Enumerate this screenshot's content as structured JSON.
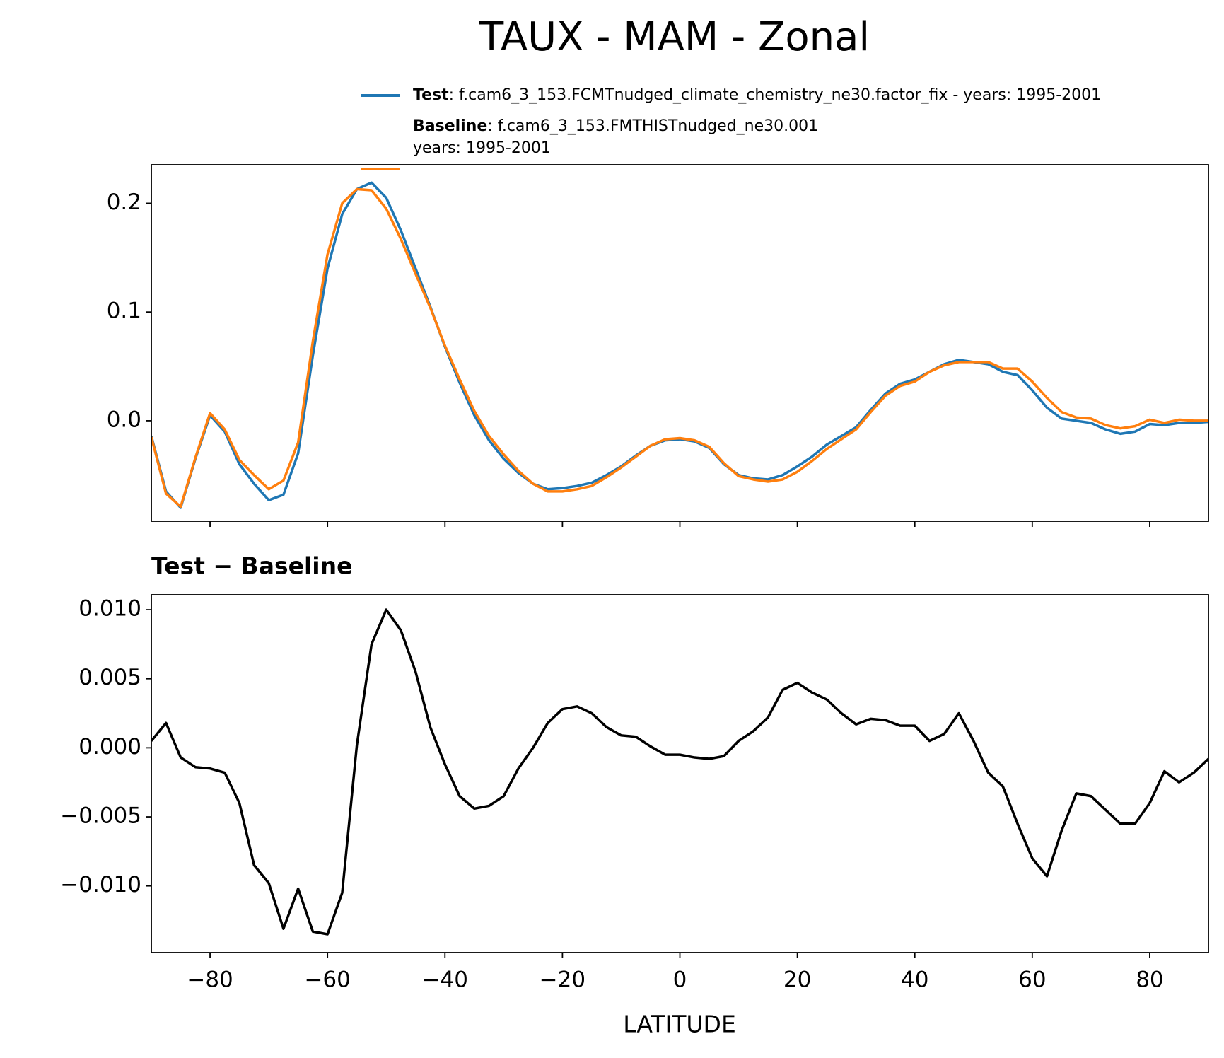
{
  "chart_data": [
    {
      "type": "line",
      "title": "TAUX - MAM - Zonal",
      "x": [
        -90,
        -87.5,
        -85,
        -82.5,
        -80,
        -77.5,
        -75,
        -72.5,
        -70,
        -67.5,
        -65,
        -62.5,
        -60,
        -57.5,
        -55,
        -52.5,
        -50,
        -47.5,
        -45,
        -42.5,
        -40,
        -37.5,
        -35,
        -32.5,
        -30,
        -27.5,
        -25,
        -22.5,
        -20,
        -17.5,
        -15,
        -12.5,
        -10,
        -7.5,
        -5,
        -2.5,
        0,
        2.5,
        5,
        7.5,
        10,
        12.5,
        15,
        17.5,
        20,
        22.5,
        25,
        27.5,
        30,
        32.5,
        35,
        37.5,
        40,
        42.5,
        45,
        47.5,
        50,
        52.5,
        55,
        57.5,
        60,
        62.5,
        65,
        67.5,
        70,
        72.5,
        75,
        77.5,
        80,
        82.5,
        85,
        87.5,
        90
      ],
      "series": [
        {
          "name": "Test",
          "description": [
            ": f.cam6_3_153.FCMTnudged_climate_chemistry_ne30.factor_fix - years: 1995-2001"
          ],
          "color": "#1f77b4",
          "values": [
            -0.014,
            -0.065,
            -0.08,
            -0.035,
            0.005,
            -0.01,
            -0.04,
            -0.058,
            -0.073,
            -0.068,
            -0.03,
            0.06,
            0.14,
            0.19,
            0.213,
            0.219,
            0.205,
            0.175,
            0.14,
            0.105,
            0.068,
            0.035,
            0.005,
            -0.018,
            -0.035,
            -0.048,
            -0.058,
            -0.063,
            -0.062,
            -0.06,
            -0.057,
            -0.05,
            -0.042,
            -0.032,
            -0.023,
            -0.018,
            -0.017,
            -0.019,
            -0.025,
            -0.04,
            -0.05,
            -0.053,
            -0.054,
            -0.05,
            -0.042,
            -0.033,
            -0.022,
            -0.014,
            -0.006,
            0.01,
            0.025,
            0.034,
            0.038,
            0.045,
            0.052,
            0.056,
            0.054,
            0.052,
            0.045,
            0.042,
            0.028,
            0.012,
            0.002,
            0,
            -0.002,
            -0.008,
            -0.012,
            -0.01,
            -0.003,
            -0.004,
            -0.002,
            -0.002,
            -0.001
          ]
        },
        {
          "name": "Baseline",
          "description": [
            ": f.cam6_3_153.FMTHISTnudged_ne30.001",
            "years: 1995-2001"
          ],
          "color": "#ff7f0e",
          "values": [
            -0.015,
            -0.067,
            -0.079,
            -0.034,
            0.007,
            -0.008,
            -0.036,
            -0.05,
            -0.063,
            -0.055,
            -0.02,
            0.073,
            0.153,
            0.2,
            0.213,
            0.212,
            0.195,
            0.167,
            0.135,
            0.104,
            0.069,
            0.038,
            0.009,
            -0.014,
            -0.031,
            -0.046,
            -0.058,
            -0.065,
            -0.065,
            -0.063,
            -0.06,
            -0.052,
            -0.043,
            -0.033,
            -0.023,
            -0.017,
            -0.016,
            -0.018,
            -0.024,
            -0.039,
            -0.051,
            -0.054,
            -0.056,
            -0.054,
            -0.047,
            -0.037,
            -0.026,
            -0.017,
            -0.008,
            0.008,
            0.023,
            0.032,
            0.036,
            0.045,
            0.051,
            0.054,
            0.054,
            0.054,
            0.048,
            0.048,
            0.036,
            0.021,
            0.008,
            0.003,
            0.002,
            -0.004,
            -0.007,
            -0.005,
            0.001,
            -0.002,
            0.001,
            0,
            0
          ]
        }
      ],
      "xlim": [
        -90,
        90
      ],
      "xticks": [
        -80,
        -60,
        -40,
        -20,
        0,
        20,
        40,
        60,
        80
      ],
      "ylim": [
        -0.0924,
        0.2354
      ],
      "yticks": [
        {
          "value": 0,
          "label": "0.0"
        },
        0.1,
        0.2
      ]
    },
    {
      "type": "line",
      "subtitle": "Test − Baseline",
      "xlabel": "LATITUDE",
      "x": [
        -90,
        -87.5,
        -85,
        -82.5,
        -80,
        -77.5,
        -75,
        -72.5,
        -70,
        -67.5,
        -65,
        -62.5,
        -60,
        -57.5,
        -55,
        -52.5,
        -50,
        -47.5,
        -45,
        -42.5,
        -40,
        -37.5,
        -35,
        -32.5,
        -30,
        -27.5,
        -25,
        -22.5,
        -20,
        -17.5,
        -15,
        -12.5,
        -10,
        -7.5,
        -5,
        -2.5,
        0,
        2.5,
        5,
        7.5,
        10,
        12.5,
        15,
        17.5,
        20,
        22.5,
        25,
        27.5,
        30,
        32.5,
        35,
        37.5,
        40,
        42.5,
        45,
        47.5,
        50,
        52.5,
        55,
        57.5,
        60,
        62.5,
        65,
        67.5,
        70,
        72.5,
        75,
        77.5,
        80,
        82.5,
        85,
        87.5,
        90
      ],
      "series": [
        {
          "color": "#000000",
          "values": [
            0.0005,
            0.0018,
            -0.0007,
            -0.0014,
            -0.0015,
            -0.0018,
            -0.004,
            -0.0085,
            -0.0098,
            -0.0131,
            -0.0102,
            -0.0133,
            -0.0135,
            -0.0105,
            0.0002,
            0.0075,
            0.01,
            0.0085,
            0.0055,
            0.0015,
            -0.0012,
            -0.0035,
            -0.0044,
            -0.0042,
            -0.0035,
            -0.0015,
            0,
            0.0018,
            0.0028,
            0.003,
            0.0025,
            0.0015,
            0.0009,
            0.0008,
            0.0001,
            -0.0005,
            -0.0005,
            -0.0007,
            -0.0008,
            -0.0006,
            0.0005,
            0.0012,
            0.0022,
            0.0042,
            0.0047,
            0.004,
            0.0035,
            0.0025,
            0.0017,
            0.0021,
            0.002,
            0.0016,
            0.0016,
            0.0005,
            0.001,
            0.0025,
            0.0005,
            -0.0018,
            -0.0028,
            -0.0055,
            -0.008,
            -0.0093,
            -0.006,
            -0.0033,
            -0.0035,
            -0.0045,
            -0.0055,
            -0.0055,
            -0.004,
            -0.0017,
            -0.0025,
            -0.0018,
            -0.0008
          ]
        }
      ],
      "xlim": [
        -90,
        90
      ],
      "xticks": [
        {
          "value": -80,
          "label": "−80"
        },
        {
          "value": -60,
          "label": "−60"
        },
        {
          "value": -40,
          "label": "−40"
        },
        {
          "value": -20,
          "label": "−20"
        },
        0,
        20,
        40,
        60,
        80
      ],
      "ylim": [
        -0.01483,
        0.01108
      ],
      "yticks": [
        {
          "value": -0.01,
          "label": "−0.010"
        },
        {
          "value": -0.005,
          "label": "−0.005"
        },
        {
          "value": 0,
          "label": "0.000"
        },
        {
          "value": 0.005,
          "label": "0.005"
        },
        {
          "value": 0.01,
          "label": "0.010"
        }
      ]
    }
  ]
}
